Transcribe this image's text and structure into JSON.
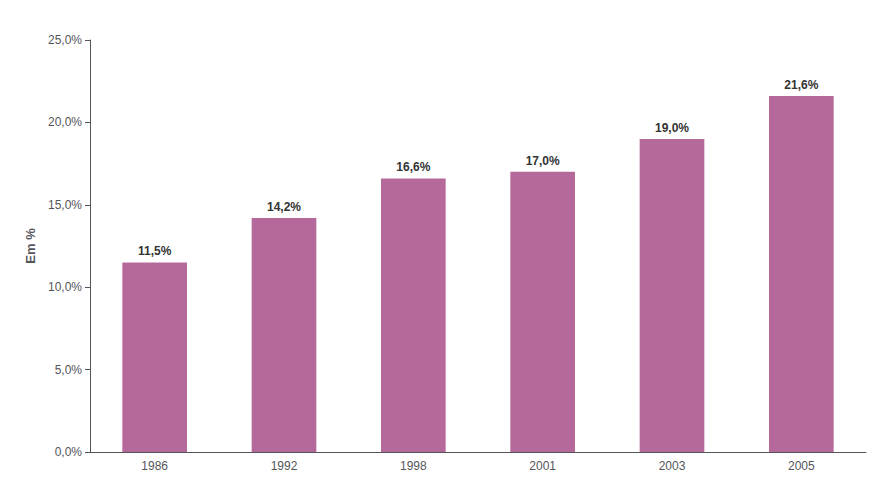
{
  "chart_data": {
    "type": "bar",
    "ylabel": "Em %",
    "categories": [
      "1986",
      "1992",
      "1998",
      "2001",
      "2003",
      "2005"
    ],
    "values": [
      11.5,
      14.2,
      16.6,
      17.0,
      19.0,
      21.6
    ],
    "value_labels": [
      "11,5%",
      "14,2%",
      "16,6%",
      "17,0%",
      "19,0%",
      "21,6%"
    ],
    "color": "#b5689a",
    "ylim": [
      0,
      25
    ],
    "yticks": [
      {
        "value": 0,
        "label": "0,0%"
      },
      {
        "value": 5,
        "label": "5,0%"
      },
      {
        "value": 10,
        "label": "10,0%"
      },
      {
        "value": 15,
        "label": "15,0%"
      },
      {
        "value": 20,
        "label": "20,0%"
      },
      {
        "value": 25,
        "label": "25,0%"
      }
    ],
    "grid": false,
    "data_labels": true
  }
}
